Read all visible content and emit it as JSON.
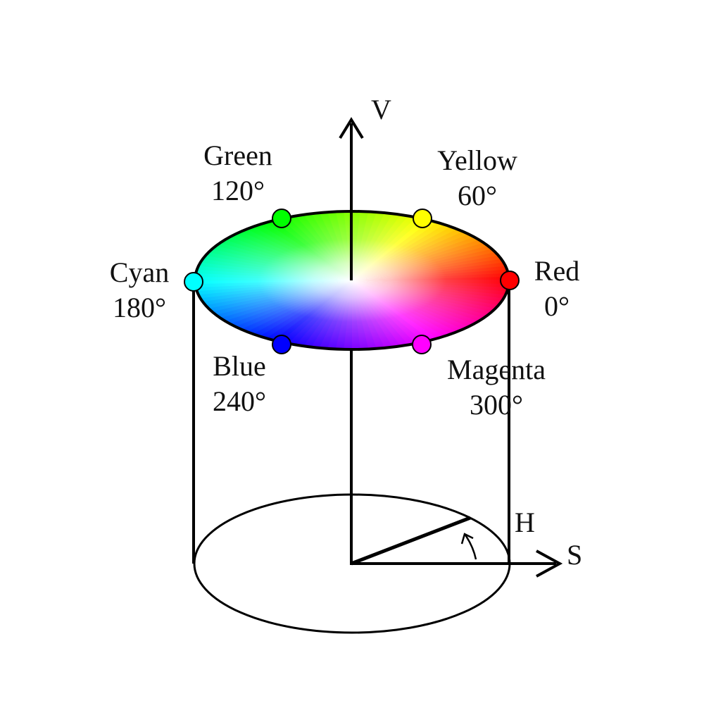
{
  "axes": {
    "v": "V",
    "s": "S",
    "h": "H"
  },
  "hues": [
    {
      "key": "red",
      "name": "Red",
      "degree": "0°",
      "color": "#ff0000"
    },
    {
      "key": "yellow",
      "name": "Yellow",
      "degree": "60°",
      "color": "#ffff00"
    },
    {
      "key": "green",
      "name": "Green",
      "degree": "120°",
      "color": "#00ff00"
    },
    {
      "key": "cyan",
      "name": "Cyan",
      "degree": "180°",
      "color": "#00ffff"
    },
    {
      "key": "blue",
      "name": "Blue",
      "degree": "240°",
      "color": "#0000ff"
    },
    {
      "key": "magenta",
      "name": "Magenta",
      "degree": "300°",
      "color": "#ff00ff"
    }
  ]
}
